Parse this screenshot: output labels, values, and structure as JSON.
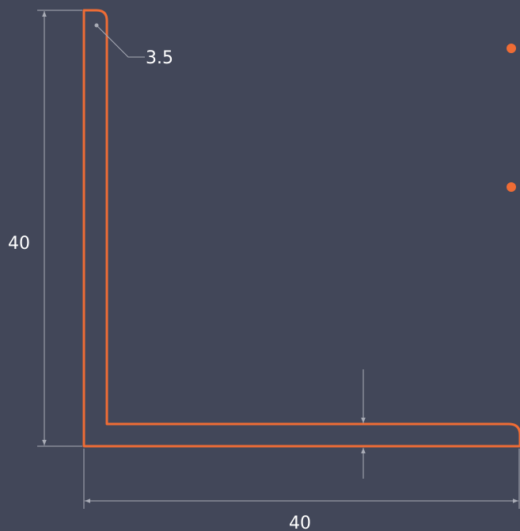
{
  "colors": {
    "background": "#424759",
    "profile": "#ef6c35",
    "dimension": "#a9acb6",
    "text": "#ffffff",
    "marker": "#ef6c35"
  },
  "dimensions": {
    "height_label": "40",
    "width_label": "40",
    "radius_label": "3.5"
  }
}
